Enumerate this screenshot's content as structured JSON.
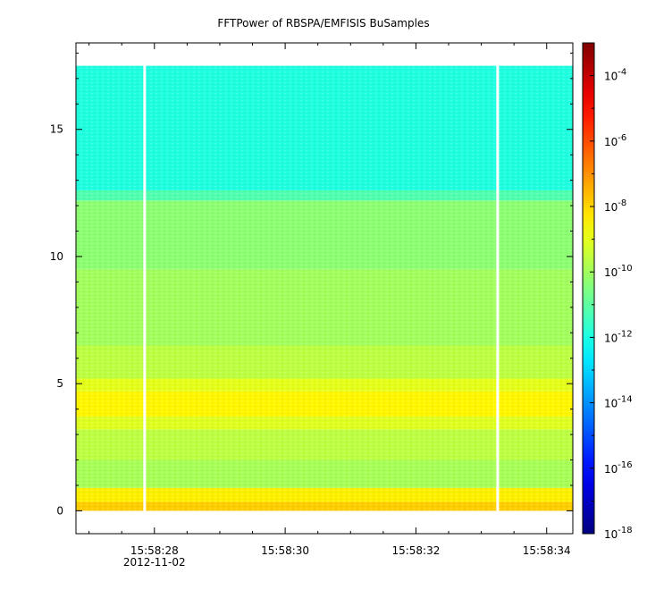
{
  "chart_data": {
    "type": "heatmap",
    "title": "FFTPower of RBSPA/EMFISIS  BuSamples",
    "xlabel": "",
    "ylabel": "",
    "x_range": [
      "15:58:26.80",
      "15:58:34.40"
    ],
    "y_range": [
      -0.9,
      18.4
    ],
    "y_ticks": [
      0,
      5,
      10,
      15
    ],
    "y_tick_labels": [
      "0",
      "5",
      "10",
      "15"
    ],
    "x_ticks": [
      "15:58:28",
      "15:58:30",
      "15:58:32",
      "15:58:34"
    ],
    "x_tick_labels": [
      "15:58:28",
      "15:58:30",
      "15:58:32",
      "15:58:34"
    ],
    "x_date_label": "2012-11-02",
    "data_extent": {
      "y_min": 0,
      "y_max": 17.5
    },
    "data_gaps": [
      "15:58:27.85",
      "15:58:33.25"
    ],
    "colorbar": {
      "scale": "log",
      "range": [
        1e-18,
        0.001
      ],
      "tick_values": [
        0.0001,
        1e-06,
        1e-08,
        1e-10,
        1e-12,
        1e-14,
        1e-16,
        1e-18
      ],
      "tick_labels": [
        {
          "base": "10",
          "exp": "-4"
        },
        {
          "base": "10",
          "exp": "-6"
        },
        {
          "base": "10",
          "exp": "-8"
        },
        {
          "base": "10",
          "exp": "-10"
        },
        {
          "base": "10",
          "exp": "-12"
        },
        {
          "base": "10",
          "exp": "-14"
        },
        {
          "base": "10",
          "exp": "-16"
        },
        {
          "base": "10",
          "exp": "-18"
        }
      ]
    },
    "power_profile": [
      {
        "y_from": 0.0,
        "y_to": 0.35,
        "log_power": -7.9
      },
      {
        "y_from": 0.35,
        "y_to": 0.9,
        "log_power": -8.4
      },
      {
        "y_from": 0.9,
        "y_to": 2.0,
        "log_power": -9.9
      },
      {
        "y_from": 2.0,
        "y_to": 3.2,
        "log_power": -9.6
      },
      {
        "y_from": 3.2,
        "y_to": 3.7,
        "log_power": -9.1
      },
      {
        "y_from": 3.7,
        "y_to": 4.7,
        "log_power": -8.5
      },
      {
        "y_from": 4.7,
        "y_to": 5.2,
        "log_power": -9.0
      },
      {
        "y_from": 5.2,
        "y_to": 6.5,
        "log_power": -9.6
      },
      {
        "y_from": 6.5,
        "y_to": 9.5,
        "log_power": -10.0
      },
      {
        "y_from": 9.5,
        "y_to": 12.2,
        "log_power": -10.3
      },
      {
        "y_from": 12.2,
        "y_to": 12.6,
        "log_power": -11.2
      },
      {
        "y_from": 12.6,
        "y_to": 17.5,
        "log_power": -11.9
      }
    ],
    "grid": false,
    "legend": "colorbar-right"
  }
}
